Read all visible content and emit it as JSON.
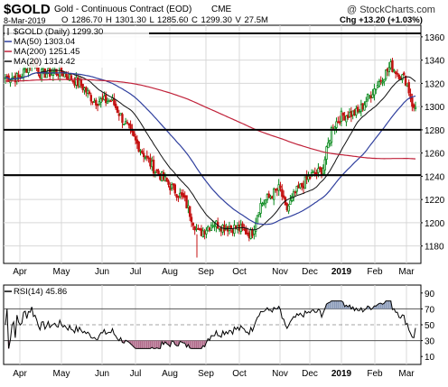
{
  "header": {
    "symbol": "$GOLD",
    "description": "Gold - Continuous Contract (EOD)",
    "exchange": "CME",
    "copyright": "@ StockCharts.com",
    "date": "8-Mar-2019",
    "ohlc": "O 1286.70  H 1301.30  L 1285.60  C 1299.30  V 27.5M",
    "chg": "Chg +13.20 (+1.03%)"
  },
  "legend": [
    {
      "label": "$GOLD (Daily) 1299.30",
      "color": "#000000",
      "swatch": "candle"
    },
    {
      "label": "MA(50) 1303.04",
      "color": "#2f3f9e",
      "swatch": "line"
    },
    {
      "label": "MA(200) 1251.45",
      "color": "#c0223a",
      "swatch": "line"
    },
    {
      "label": "MA(20) 1314.42",
      "color": "#111111",
      "swatch": "line"
    }
  ],
  "rsi_legend": "RSI(14) 45.86",
  "chart_data": [
    {
      "type": "candlestick",
      "title": "$GOLD Gold - Continuous Contract (EOD) CME",
      "x_labels": [
        "Apr",
        "May",
        "Jun",
        "Jul",
        "Aug",
        "Sep",
        "Oct",
        "Nov",
        "Dec",
        "2019",
        "Feb",
        "Mar"
      ],
      "y_ticks": [
        1180,
        1200,
        1220,
        1240,
        1260,
        1280,
        1300,
        1320,
        1340,
        1360
      ],
      "ylim": [
        1165,
        1370
      ],
      "horizontal_lines": [
        1363,
        1280,
        1241
      ],
      "grid": true,
      "series_close_anchors": {
        "months": [
          0,
          0.3,
          0.5,
          1.0,
          1.5,
          1.8,
          2.3,
          3.0,
          3.5,
          4.0,
          4.4,
          4.8,
          5.2,
          5.5,
          6.0,
          6.3,
          6.5,
          7.0,
          7.2,
          7.5,
          8.0,
          8.4,
          8.7,
          9.0,
          9.5,
          10.0,
          10.5,
          11.0,
          11.3,
          11.5
        ],
        "close": [
          1325,
          1340,
          1328,
          1330,
          1318,
          1305,
          1305,
          1270,
          1248,
          1232,
          1220,
          1190,
          1200,
          1197,
          1195,
          1190,
          1215,
          1230,
          1210,
          1225,
          1240,
          1245,
          1282,
          1292,
          1295,
          1316,
          1335,
          1322,
          1289,
          1299
        ]
      },
      "ma_colors": {
        "MA(20)": "#111111",
        "MA(50)": "#2f3f9e",
        "MA(200)": "#c0223a"
      },
      "legend_position": "top-left"
    },
    {
      "type": "line",
      "title": "RSI(14) 45.86",
      "y_ticks": [
        10,
        30,
        50,
        70,
        90
      ],
      "ylim": [
        0,
        100
      ],
      "reference_lines": [
        70,
        50,
        30
      ],
      "x_labels": [
        "Apr",
        "May",
        "Jun",
        "Jul",
        "Aug",
        "Sep",
        "Oct",
        "Nov",
        "Dec",
        "2019",
        "Feb",
        "Mar"
      ],
      "last_value": 45.86
    }
  ]
}
